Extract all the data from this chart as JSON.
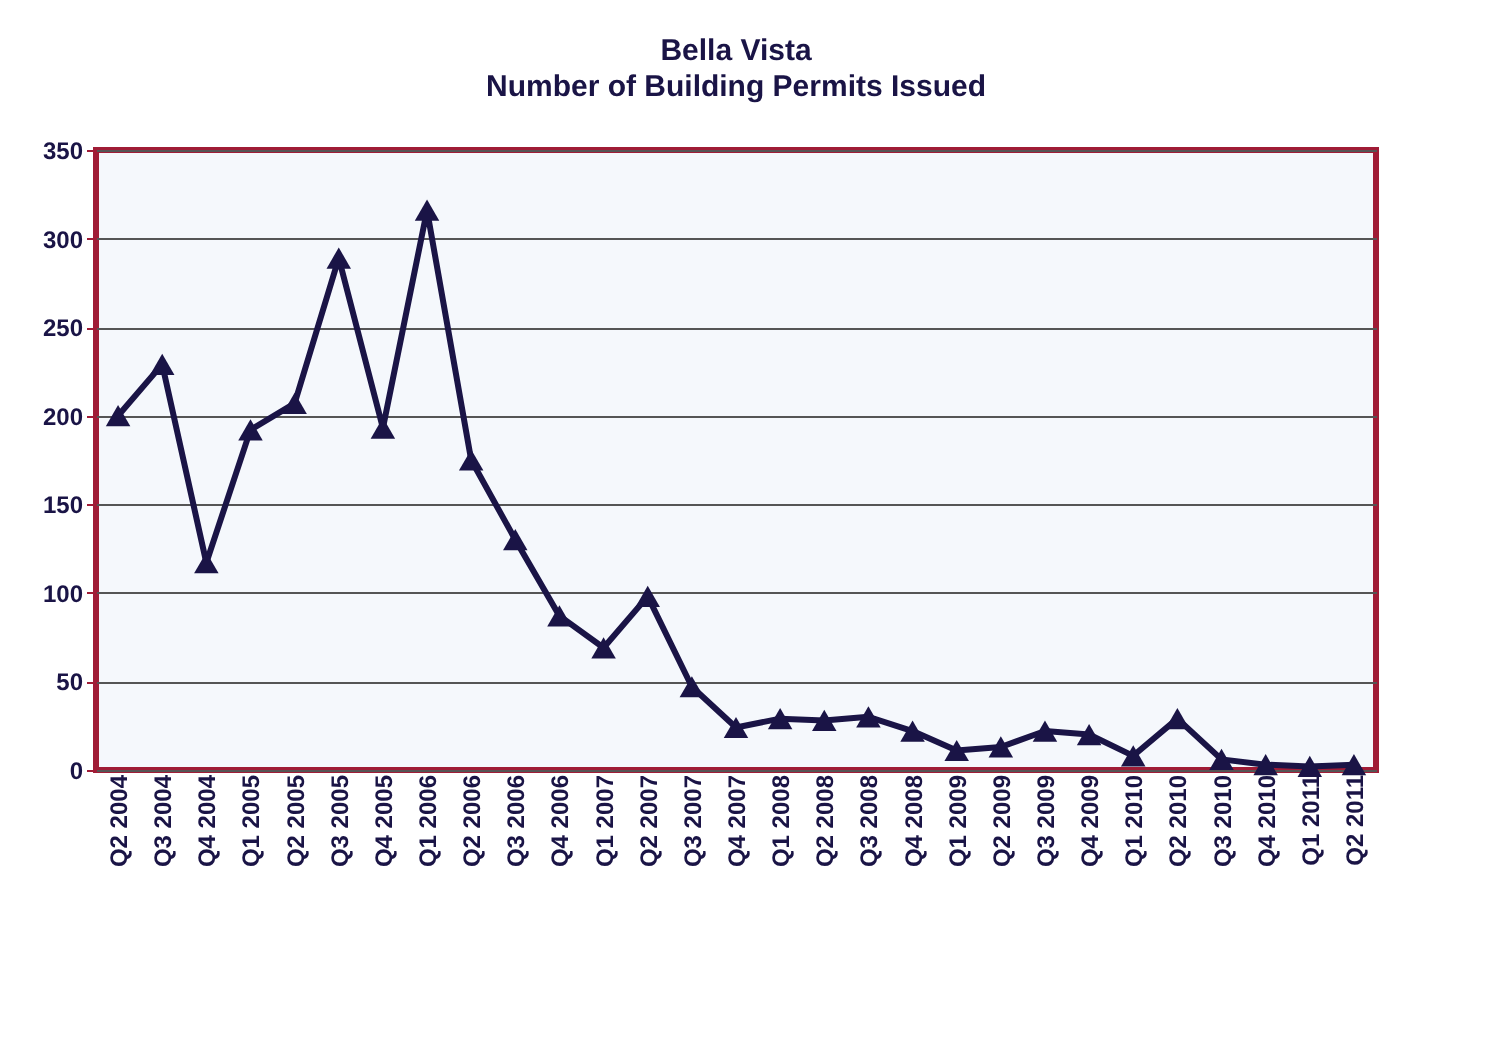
{
  "chart_data": {
    "type": "line",
    "title": "Bella Vista",
    "subtitle": "Number of Building Permits Issued",
    "categories": [
      "Q2 2004",
      "Q3 2004",
      "Q4 2004",
      "Q1 2005",
      "Q2 2005",
      "Q3 2005",
      "Q4 2005",
      "Q1 2006",
      "Q2 2006",
      "Q3 2006",
      "Q4 2006",
      "Q1 2007",
      "Q2 2007",
      "Q3 2007",
      "Q4 2007",
      "Q1 2008",
      "Q2 2008",
      "Q3 2008",
      "Q4 2008",
      "Q1 2009",
      "Q2 2009",
      "Q3 2009",
      "Q4 2009",
      "Q1 2010",
      "Q2 2010",
      "Q3 2010",
      "Q4 2010",
      "Q1 2011",
      "Q2 2011"
    ],
    "series": [
      {
        "color": "#1a1446",
        "values": [
          200,
          229,
          117,
          192,
          207,
          289,
          193,
          316,
          175,
          130,
          87,
          69,
          98,
          47,
          24,
          29,
          28,
          30,
          22,
          11,
          13,
          22,
          20,
          8,
          29,
          6,
          3,
          2,
          3
        ]
      }
    ],
    "ylim": [
      0,
      350
    ],
    "yticks": [
      0,
      50,
      100,
      150,
      200,
      250,
      300,
      350
    ],
    "grid": "y",
    "marker": "triangle",
    "line_style": "solid"
  }
}
